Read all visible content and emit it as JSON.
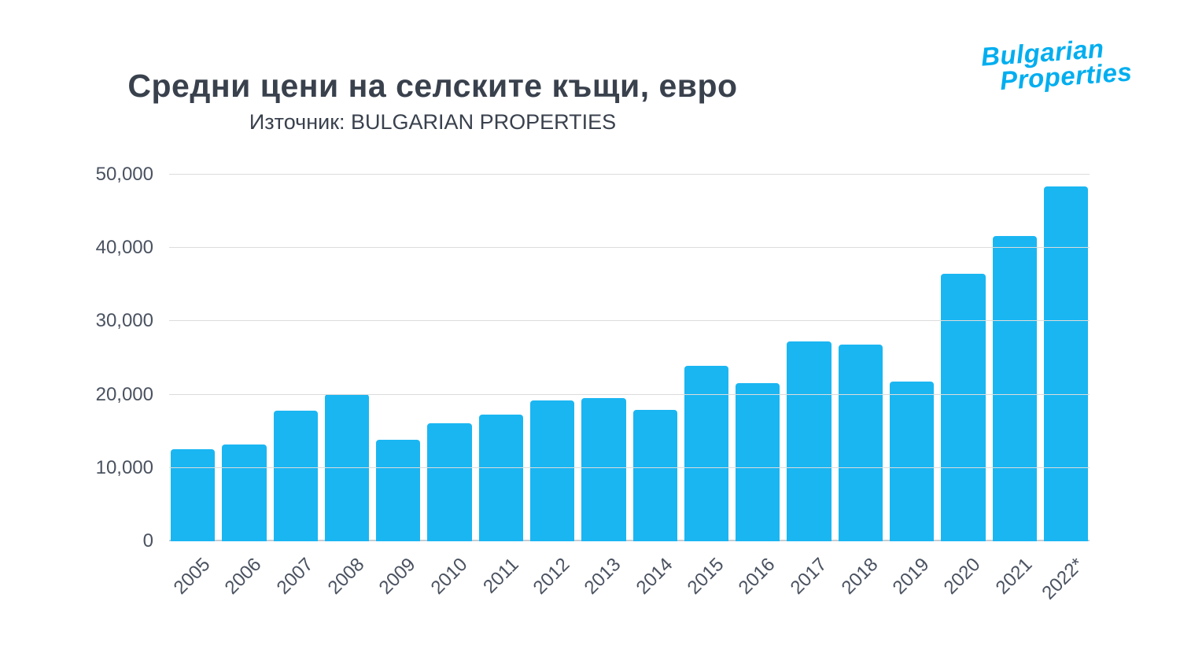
{
  "header": {
    "title": "Средни цени на селските къщи, евро",
    "subtitle": "Източник: BULGARIAN PROPERTIES",
    "logo_line1": "Bulgarian",
    "logo_line2": "Properties"
  },
  "colors": {
    "bar": "#1ab6f2",
    "logo": "#00aeef",
    "title_text": "#39414d",
    "axis_text": "#4a5260",
    "gridline": "#dcdcdc",
    "baseline": "#c7cbd1"
  },
  "chart_data": {
    "type": "bar",
    "title": "Средни цени на селските къщи, евро",
    "subtitle": "Източник: BULGARIAN PROPERTIES",
    "categories": [
      "2005",
      "2006",
      "2007",
      "2008",
      "2009",
      "2010",
      "2011",
      "2012",
      "2013",
      "2014",
      "2015",
      "2016",
      "2017",
      "2018",
      "2019",
      "2020",
      "2021",
      "2022*"
    ],
    "values": [
      12600,
      13200,
      17800,
      20100,
      13800,
      16100,
      17300,
      19200,
      19500,
      17900,
      23900,
      21600,
      27300,
      26800,
      21800,
      36500,
      41600,
      48400
    ],
    "xlabel": "",
    "ylabel": "",
    "ylim": [
      0,
      50000
    ],
    "yticks": [
      0,
      10000,
      20000,
      30000,
      40000,
      50000
    ],
    "ytick_labels": [
      "0",
      "10,000",
      "20,000",
      "30,000",
      "40,000",
      "50,000"
    ],
    "grid": true,
    "legend": false
  }
}
